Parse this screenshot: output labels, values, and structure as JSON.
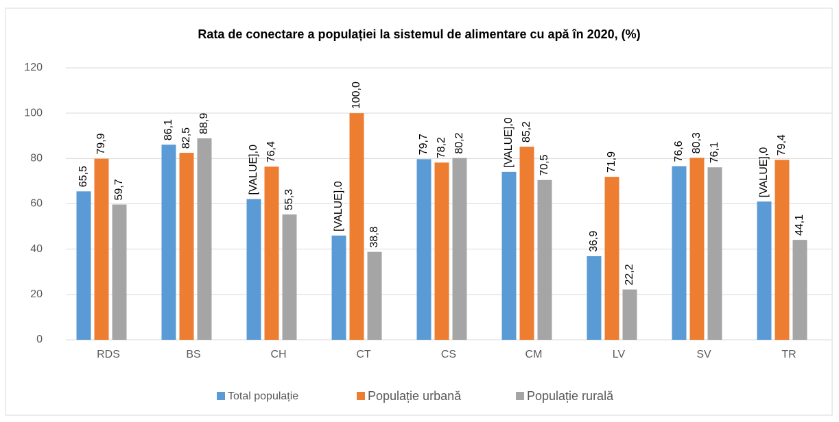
{
  "chart_data": {
    "type": "bar",
    "title": "Rata de conectare a populației la sistemul de alimentare cu apă în 2020, (%)",
    "categories": [
      "RDS",
      "BS",
      "CH",
      "CT",
      "CS",
      "CM",
      "LV",
      "SV",
      "TR"
    ],
    "series": [
      {
        "name": "Total populație",
        "color": "#5b9bd5",
        "values": [
          65.5,
          86.1,
          62.1,
          46,
          79.7,
          74.1,
          36.9,
          76.6,
          61
        ],
        "value_labels": [
          "65,5",
          "86,1",
          "[VALUE],0",
          "[VALUE].0",
          "79,7",
          "[VALUE],0",
          "36,9",
          "76,6",
          "[VALUE],0"
        ]
      },
      {
        "name": "Populație urbană",
        "color": "#ed7d31",
        "values": [
          79.9,
          82.5,
          76.4,
          100.0,
          78.2,
          85.2,
          71.9,
          80.3,
          79.4
        ],
        "value_labels": [
          "79,9",
          "82,5",
          "76,4",
          "100,0",
          "78,2",
          "85,2",
          "71,9",
          "80,3",
          "79,4"
        ]
      },
      {
        "name": "Populație rurală",
        "color": "#a5a5a5",
        "values": [
          59.7,
          88.9,
          55.3,
          38.8,
          80.2,
          70.5,
          22.2,
          76.1,
          44.1
        ],
        "value_labels": [
          "59,7",
          "88,9",
          "55,3",
          "38,8",
          "80,2",
          "70,5",
          "22,2",
          "76,1",
          "44,1"
        ]
      }
    ],
    "ylim": [
      0,
      120
    ],
    "yticks": [
      0,
      20,
      40,
      60,
      80,
      100,
      120
    ],
    "grid": true,
    "legend": "bottom"
  }
}
